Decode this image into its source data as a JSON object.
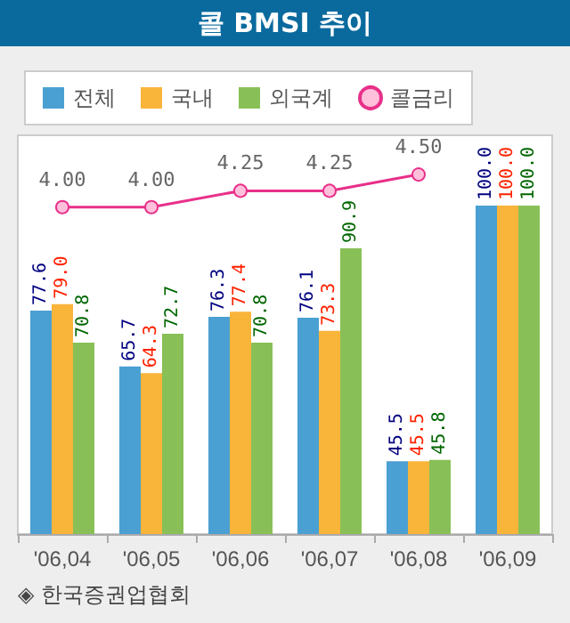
{
  "chart_data": {
    "type": "bar",
    "title": "콜 BMSI 추이",
    "categories": [
      "'06,04",
      "'06,05",
      "'06,06",
      "'06,07",
      "'06,08",
      "'06,09"
    ],
    "series": [
      {
        "name": "전체",
        "color": "#4aa0d2",
        "values": [
          77.6,
          65.7,
          76.3,
          76.1,
          45.5,
          100.0
        ],
        "value_labels": [
          "77.6",
          "65.7",
          "76.3",
          "76.1",
          "45.5",
          "100.0"
        ]
      },
      {
        "name": "국내",
        "color": "#f9b43a",
        "values": [
          79.0,
          64.3,
          77.4,
          73.3,
          45.5,
          100.0
        ],
        "value_labels": [
          "79.0",
          "64.3",
          "77.4",
          "73.3",
          "45.5",
          "100.0"
        ]
      },
      {
        "name": "외국계",
        "color": "#88c057",
        "values": [
          70.8,
          72.7,
          70.8,
          90.9,
          45.8,
          100.0
        ],
        "value_labels": [
          "70.8",
          "72.7",
          "70.8",
          "90.9",
          "45.8",
          "100.0"
        ]
      },
      {
        "name": "콜금리",
        "type": "line",
        "axis": "y2",
        "color": "#e8308a",
        "marker": "circle",
        "values": [
          4.0,
          4.0,
          4.25,
          4.25,
          4.5,
          null
        ],
        "value_labels": [
          "4.00",
          "4.00",
          "4.25",
          "4.25",
          "4.50",
          null
        ]
      }
    ],
    "ylim": [
      30,
      115
    ],
    "y2lim": [
      -1,
      5.1
    ],
    "tick_labels": "x",
    "grid": false,
    "legend": "top",
    "annotations": [
      "◈ 한국증권업협회"
    ]
  }
}
